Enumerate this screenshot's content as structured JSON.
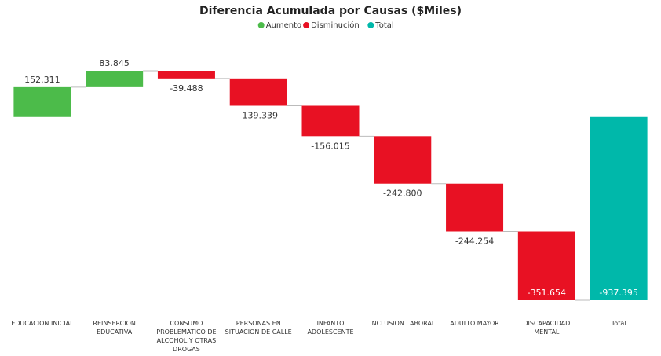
{
  "chart_data": {
    "type": "waterfall",
    "title": "Diferencia Acumulada por Causas ($Miles)",
    "legend": [
      {
        "name": "Aumento",
        "color": "#4cbb4a"
      },
      {
        "name": "Disminución",
        "color": "#e81123"
      },
      {
        "name": "Total",
        "color": "#00b8aa"
      }
    ],
    "categories": [
      "EDUCACION INICIAL",
      "REINSERCION EDUCATIVA",
      "CONSUMO PROBLEMATICO DE ALCOHOL Y OTRAS DROGAS",
      "PERSONAS EN SITUACION DE CALLE",
      "INFANTO ADOLESCENTE",
      "INCLUSION LABORAL",
      "ADULTO MAYOR",
      "DISCAPACIDAD MENTAL",
      "Total"
    ],
    "values": [
      152.311,
      83.845,
      -39.488,
      -139.339,
      -156.015,
      -242.8,
      -244.254,
      -351.654,
      -937.395
    ],
    "value_labels": [
      "152.311",
      "83.845",
      "-39.488",
      "-139.339",
      "-156.015",
      "-242.800",
      "-244.254",
      "-351.654",
      "-937.395"
    ]
  }
}
